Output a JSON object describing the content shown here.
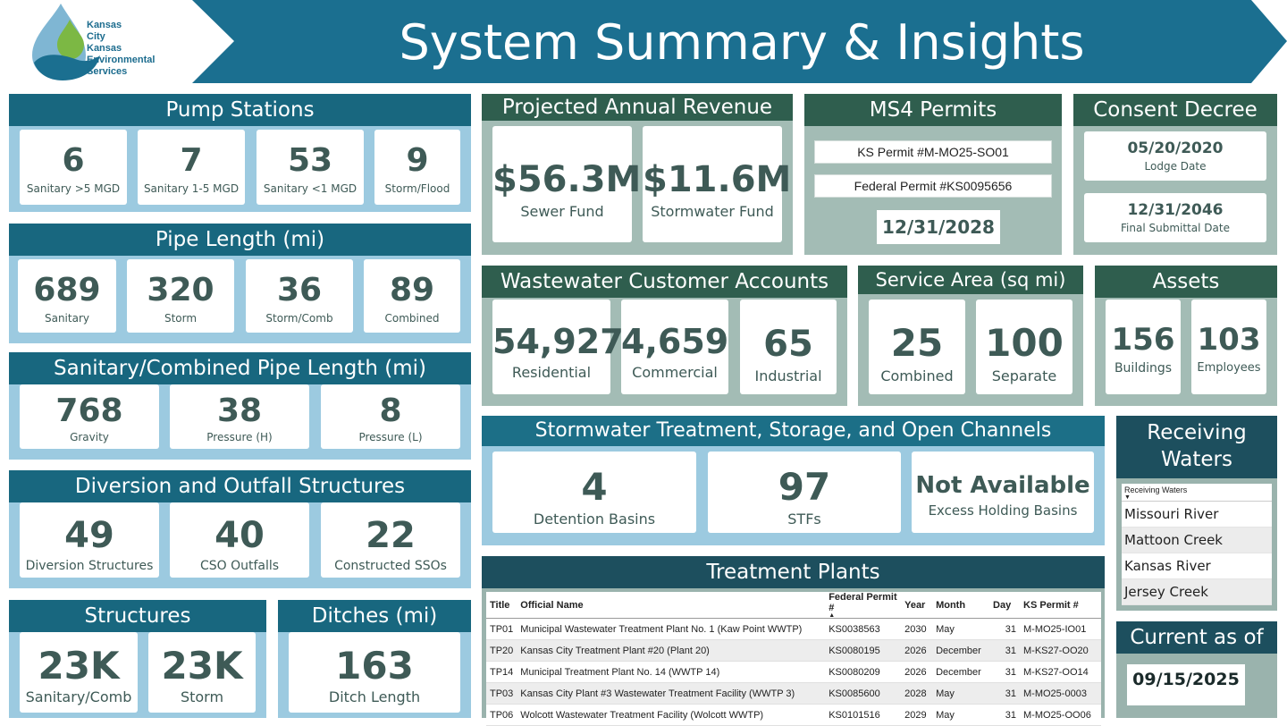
{
  "header": {
    "logo_lines": [
      "Kansas",
      "City",
      "Kansas",
      "Environmental",
      "Services"
    ],
    "title": "System Summary & Insights"
  },
  "pump_stations": {
    "title": "Pump Stations",
    "cards": [
      {
        "value": "6",
        "label": "Sanitary >5 MGD"
      },
      {
        "value": "7",
        "label": "Sanitary 1-5 MGD"
      },
      {
        "value": "53",
        "label": "Sanitary <1 MGD"
      },
      {
        "value": "9",
        "label": "Storm/Flood"
      }
    ]
  },
  "pipe_length": {
    "title": "Pipe Length (mi)",
    "cards": [
      {
        "value": "689",
        "label": "Sanitary"
      },
      {
        "value": "320",
        "label": "Storm"
      },
      {
        "value": "36",
        "label": "Storm/Comb"
      },
      {
        "value": "89",
        "label": "Combined"
      }
    ]
  },
  "sanitary_combined_pipe": {
    "title": "Sanitary/Combined Pipe Length (mi)",
    "cards": [
      {
        "value": "768",
        "label": "Gravity"
      },
      {
        "value": "38",
        "label": "Pressure (H)"
      },
      {
        "value": "8",
        "label": "Pressure (L)"
      }
    ]
  },
  "diversion_outfall": {
    "title": "Diversion and Outfall Structures",
    "cards": [
      {
        "value": "49",
        "label": "Diversion Structures"
      },
      {
        "value": "40",
        "label": "CSO Outfalls"
      },
      {
        "value": "22",
        "label": "Constructed SSOs"
      }
    ]
  },
  "structures": {
    "title": "Structures",
    "cards": [
      {
        "value": "23K",
        "label": "Sanitary/Comb"
      },
      {
        "value": "23K",
        "label": "Storm"
      }
    ]
  },
  "ditches": {
    "title": "Ditches (mi)",
    "cards": [
      {
        "value": "163",
        "label": "Ditch Length"
      }
    ]
  },
  "revenue": {
    "title": "Projected Annual Revenue",
    "cards": [
      {
        "value": "$56.3M",
        "label": "Sewer Fund"
      },
      {
        "value": "$11.6M",
        "label": "Stormwater Fund"
      }
    ]
  },
  "ms4": {
    "title": "MS4 Permits",
    "ks_permit": "KS Permit #M-MO25-SO01",
    "federal_permit": "Federal Permit #KS0095656",
    "date": "12/31/2028"
  },
  "consent_decree": {
    "title": "Consent Decree",
    "cards": [
      {
        "value": "05/20/2020",
        "label": "Lodge Date"
      },
      {
        "value": "12/31/2046",
        "label": "Final Submittal Date"
      }
    ]
  },
  "wastewater_accounts": {
    "title": "Wastewater Customer Accounts",
    "cards": [
      {
        "value": "54,927",
        "label": "Residential"
      },
      {
        "value": "4,659",
        "label": "Commercial"
      },
      {
        "value": "65",
        "label": "Industrial"
      }
    ]
  },
  "service_area": {
    "title": "Service Area (sq mi)",
    "cards": [
      {
        "value": "25",
        "label": "Combined"
      },
      {
        "value": "100",
        "label": "Separate"
      }
    ]
  },
  "assets": {
    "title": "Assets",
    "cards": [
      {
        "value": "156",
        "label": "Buildings"
      },
      {
        "value": "103",
        "label": "Employees"
      }
    ]
  },
  "stormwater": {
    "title": "Stormwater Treatment, Storage, and Open Channels",
    "cards": [
      {
        "value": "4",
        "label": "Detention Basins"
      },
      {
        "value": "97",
        "label": "STFs"
      },
      {
        "value": "Not Available",
        "label": "Excess Holding Basins"
      }
    ]
  },
  "receiving_waters": {
    "title_line1": "Receiving",
    "title_line2": "Waters",
    "list_header": "Receiving Waters",
    "items": [
      "Missouri River",
      "Mattoon Creek",
      "Kansas River",
      "Jersey Creek"
    ]
  },
  "treatment_plants": {
    "title": "Treatment Plants",
    "columns": [
      "Title",
      "Official Name",
      "Federal Permit #",
      "Year",
      "Month",
      "Day",
      "KS Permit #"
    ],
    "rows": [
      [
        "TP01",
        "Municipal Wastewater Treatment Plant No. 1 (Kaw Point WWTP)",
        "KS0038563",
        "2030",
        "May",
        "31",
        "M-MO25-IO01"
      ],
      [
        "TP20",
        "Kansas City Treatment Plant #20 (Plant 20)",
        "KS0080195",
        "2026",
        "December",
        "31",
        "M-KS27-OO20"
      ],
      [
        "TP14",
        "Municipal Treatment Plant No. 14 (WWTP 14)",
        "KS0080209",
        "2026",
        "December",
        "31",
        "M-KS27-OO14"
      ],
      [
        "TP03",
        "Kansas City Plant #3 Wastewater Treatment Facility (WWTP 3)",
        "KS0085600",
        "2028",
        "May",
        "31",
        "M-MO25-0003"
      ],
      [
        "TP06",
        "Wolcott Wastewater Treatment Facility (Wolcott WWTP)",
        "KS0101516",
        "2029",
        "May",
        "31",
        "M-MO25-OO06"
      ]
    ]
  },
  "current_as_of": {
    "title": "Current as of",
    "date": "09/15/2025"
  },
  "colors": {
    "header_blue": "#1b6f90",
    "panel_blue": "#9ccae0",
    "panel_grey": "#a3bcb5",
    "title_green": "#2f5e4e",
    "title_blue": "#18677f",
    "value_text": "#3e5a56"
  }
}
